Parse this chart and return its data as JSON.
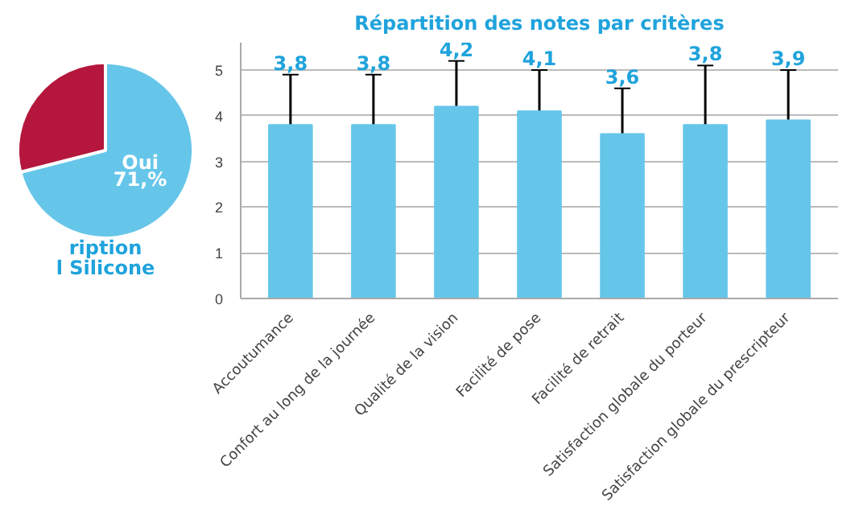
{
  "chart_data": [
    {
      "type": "pie",
      "title": "ription",
      "subtitle": "l Silicone",
      "categories": [
        "Oui",
        null
      ],
      "values": [
        71,
        29
      ],
      "colors": [
        "#66c6ea",
        "#b5173c"
      ],
      "value_labels": [
        "71,%",
        null
      ]
    },
    {
      "type": "bar",
      "title": "Répartition des notes par critères",
      "categories": [
        "Accoutumance",
        "Confort au long de la journée",
        "Qualité de la vision",
        "Facilité de pose",
        "Facilité de retrait",
        "Satisfaction globale du porteur",
        "Satisfaction globale du prescripteur"
      ],
      "values": [
        3.8,
        3.8,
        4.2,
        4.1,
        3.6,
        3.8,
        3.9
      ],
      "value_labels": [
        "3,8",
        "3,8",
        "4,2",
        "4,1",
        "3,6",
        "3,8",
        "3,9"
      ],
      "errors": [
        [
          3.8,
          4.9
        ],
        [
          3.8,
          4.9
        ],
        [
          4.2,
          5.2
        ],
        [
          4.1,
          5.0
        ],
        [
          3.6,
          4.6
        ],
        [
          3.8,
          5.1
        ],
        [
          3.9,
          5.0
        ]
      ],
      "color": "#66c6ea",
      "ylim": [
        0,
        5.6
      ],
      "yticks": [
        0,
        1,
        2,
        3,
        4,
        5
      ],
      "grid": "y"
    }
  ]
}
